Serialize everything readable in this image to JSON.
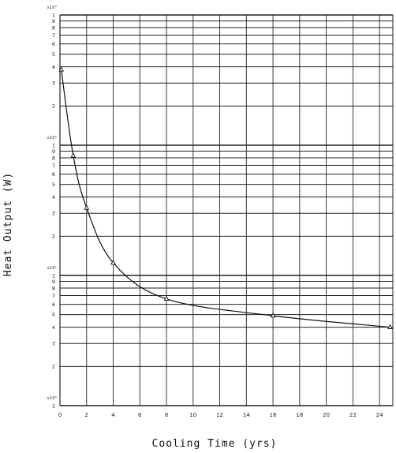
{
  "chart_data": {
    "type": "line",
    "title": "",
    "xlabel": "Cooling Time (yrs)",
    "ylabel": "Heat Output (W)",
    "x_scale": "linear",
    "y_scale": "log",
    "xlim": [
      0,
      25
    ],
    "ylim": [
      1,
      1000
    ],
    "x_ticks": [
      0,
      2,
      4,
      6,
      8,
      10,
      12,
      14,
      16,
      18,
      20,
      22,
      24
    ],
    "decade_labels": [
      "x10³",
      "x10²",
      "x10¹",
      "x10⁰"
    ],
    "minor_tick_labels": [
      "9",
      "8",
      "7",
      "6",
      "5",
      "4",
      "3",
      "2",
      "1"
    ],
    "grid": true,
    "marker": "triangle",
    "series": [
      {
        "x": [
          0.1,
          1,
          2,
          4,
          8,
          16,
          24.8
        ],
        "y": [
          380,
          83,
          33,
          12.5,
          6.6,
          4.9,
          4.0
        ]
      }
    ]
  }
}
